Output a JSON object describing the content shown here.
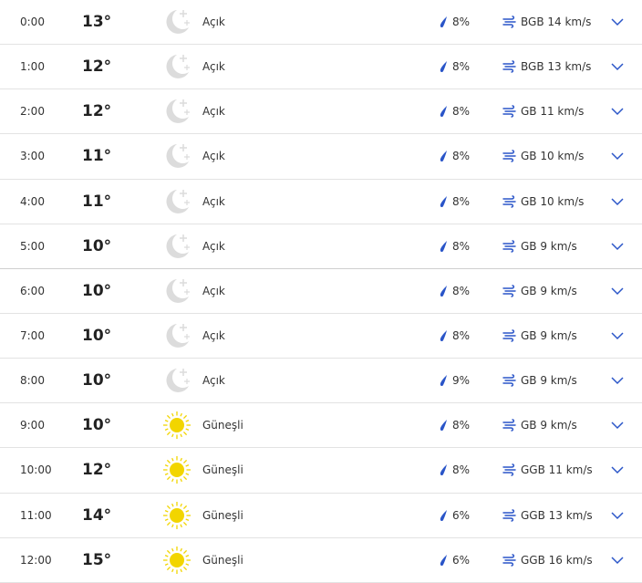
{
  "colors": {
    "accent": "#2a55c8",
    "sun": "#f2d500",
    "moon": "#dcdcdc"
  },
  "rows": [
    {
      "time": "0:00",
      "temp": "13°",
      "icon": "moon-stars-icon",
      "condition": "Açık",
      "precip": "8%",
      "wind": "BGB 14 km/s"
    },
    {
      "time": "1:00",
      "temp": "12°",
      "icon": "moon-stars-icon",
      "condition": "Açık",
      "precip": "8%",
      "wind": "BGB 13 km/s"
    },
    {
      "time": "2:00",
      "temp": "12°",
      "icon": "moon-stars-icon",
      "condition": "Açık",
      "precip": "8%",
      "wind": "GB 11 km/s"
    },
    {
      "time": "3:00",
      "temp": "11°",
      "icon": "moon-stars-icon",
      "condition": "Açık",
      "precip": "8%",
      "wind": "GB 10 km/s"
    },
    {
      "time": "4:00",
      "temp": "11°",
      "icon": "moon-stars-icon",
      "condition": "Açık",
      "precip": "8%",
      "wind": "GB 10 km/s"
    },
    {
      "time": "5:00",
      "temp": "10°",
      "icon": "moon-stars-icon",
      "condition": "Açık",
      "precip": "8%",
      "wind": "GB 9 km/s"
    },
    {
      "time": "6:00",
      "temp": "10°",
      "icon": "moon-stars-icon",
      "condition": "Açık",
      "precip": "8%",
      "wind": "GB 9 km/s"
    },
    {
      "time": "7:00",
      "temp": "10°",
      "icon": "moon-stars-icon",
      "condition": "Açık",
      "precip": "8%",
      "wind": "GB 9 km/s"
    },
    {
      "time": "8:00",
      "temp": "10°",
      "icon": "moon-stars-icon",
      "condition": "Açık",
      "precip": "9%",
      "wind": "GB 9 km/s"
    },
    {
      "time": "9:00",
      "temp": "10°",
      "icon": "sun-icon",
      "condition": "Güneşli",
      "precip": "8%",
      "wind": "GB 9 km/s"
    },
    {
      "time": "10:00",
      "temp": "12°",
      "icon": "sun-icon",
      "condition": "Güneşli",
      "precip": "8%",
      "wind": "GGB 11 km/s"
    },
    {
      "time": "11:00",
      "temp": "14°",
      "icon": "sun-icon",
      "condition": "Güneşli",
      "precip": "6%",
      "wind": "GGB 13 km/s"
    },
    {
      "time": "12:00",
      "temp": "15°",
      "icon": "sun-icon",
      "condition": "Güneşli",
      "precip": "6%",
      "wind": "GGB 16 km/s"
    }
  ]
}
